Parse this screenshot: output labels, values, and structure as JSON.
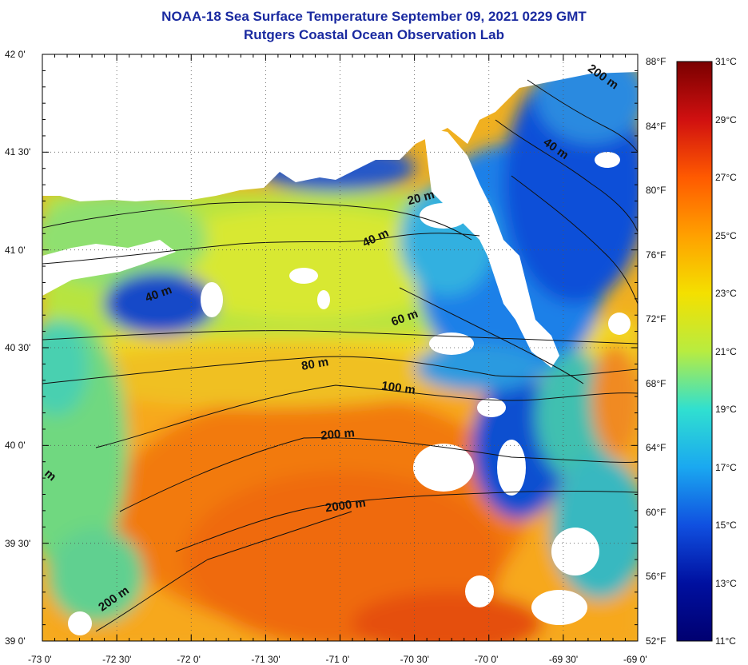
{
  "header": {
    "title": "NOAA-18 Sea Surface Temperature September 09, 2021 0229 GMT",
    "subtitle": "Rutgers Coastal Ocean Observation Lab"
  },
  "axes": {
    "lat_labels": [
      "42 0'",
      "41 30'",
      "41 0'",
      "40 30'",
      "40 0'",
      "39 30'",
      "39 0'"
    ],
    "lon_labels": [
      "-73 0'",
      "-72 30'",
      "-72 0'",
      "-71 30'",
      "-71 0'",
      "-70 30'",
      "-70 0'",
      "-69 30'",
      "-69 0'"
    ]
  },
  "colorbar": {
    "fahrenheit_labels": [
      "88°F",
      "84°F",
      "80°F",
      "76°F",
      "72°F",
      "68°F",
      "64°F",
      "60°F",
      "56°F",
      "52°F"
    ],
    "celsius_labels": [
      "31°C",
      "29°C",
      "27°C",
      "25°C",
      "23°C",
      "21°C",
      "19°C",
      "17°C",
      "15°C",
      "13°C",
      "11°C"
    ],
    "colors": [
      "#7a0000",
      "#d01010",
      "#ff5a00",
      "#ffa000",
      "#f4e000",
      "#b8ec40",
      "#30e0d0",
      "#1aa8f0",
      "#1050e0",
      "#0010a0",
      "#000070"
    ]
  },
  "contours": {
    "labels": [
      "200 m",
      "40 m",
      "20 m",
      "40 m",
      "40 m",
      "60 m",
      "80 m",
      "100 m",
      "200 m",
      "2000 m",
      "200 m",
      "m"
    ]
  },
  "colors": {
    "title": "#1a2aa0",
    "land": "#ffffff",
    "cloud": "#ffffff"
  }
}
